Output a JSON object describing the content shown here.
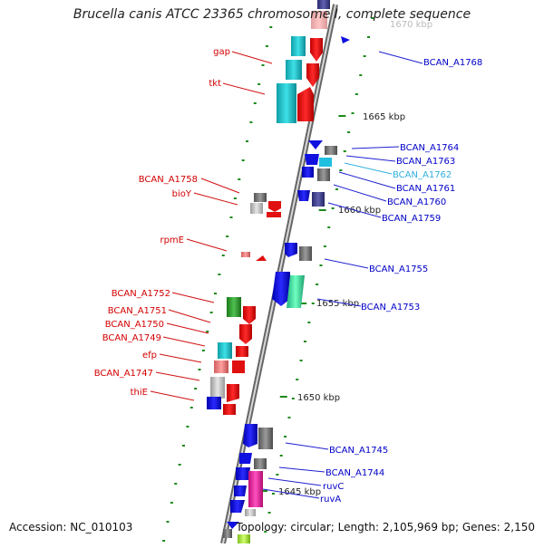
{
  "title": "Brucella canis ATCC 23365 chromosome I, complete sequence",
  "accession": "Accession: NC_010103",
  "topology": "Topology: circular; Length: 2,105,969 bp; Genes: 2,150",
  "ruler": {
    "labels": [
      "1670 kbp",
      "1665 kbp",
      "1660 kbp",
      "1655 kbp",
      "1650 kbp",
      "1645 kbp"
    ]
  },
  "colors": {
    "left_label": "#d40000",
    "right_label": "#0000c8",
    "highlight_label": "#30b0e0",
    "leader_right": "#2020d0",
    "leader_left": "#d01010",
    "backbone": "#888888",
    "tick": "#1a8a1a"
  },
  "left_labels": [
    "gap",
    "tkt",
    "BCAN_A1758",
    "bioY",
    "rpmE",
    "BCAN_A1752",
    "BCAN_A1751",
    "BCAN_A1750",
    "BCAN_A1749",
    "efp",
    "BCAN_A1747",
    "thiE"
  ],
  "right_labels": [
    "BCAN_A1768",
    "BCAN_A1764",
    "BCAN_A1763",
    "BCAN_A1762",
    "BCAN_A1761",
    "BCAN_A1760",
    "BCAN_A1759",
    "BCAN_A1755",
    "BCAN_A1753",
    "BCAN_A1745",
    "BCAN_A1744",
    "ruvC",
    "ruvA"
  ],
  "highlighted_right_label": "BCAN_A1762"
}
